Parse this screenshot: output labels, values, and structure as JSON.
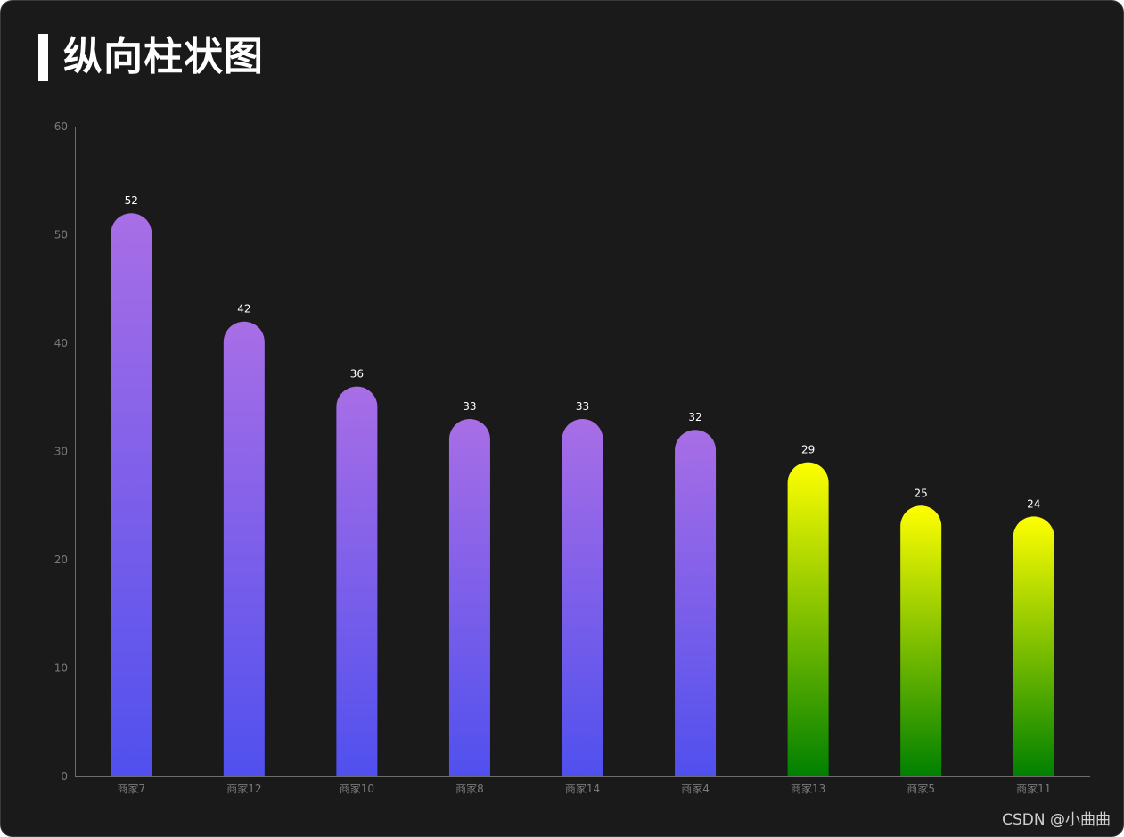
{
  "page": {
    "title": "纵向柱状图",
    "watermark": "CSDN @小曲曲"
  },
  "colors": {
    "background": "#1a1a1a",
    "axis": "#6e6e6e",
    "tick_text": "#7a7a7a",
    "label_text": "#ffffff",
    "purple_top": "#a86ee6",
    "purple_bottom": "#5050ee",
    "yellow_top": "#ffff00",
    "green_bottom": "#008000"
  },
  "chart_data": {
    "type": "bar",
    "categories": [
      "商家7",
      "商家12",
      "商家10",
      "商家8",
      "商家14",
      "商家4",
      "商家13",
      "商家5",
      "商家11"
    ],
    "values": [
      52,
      42,
      36,
      33,
      33,
      32,
      29,
      25,
      24
    ],
    "bar_colors": [
      "purple",
      "purple",
      "purple",
      "purple",
      "purple",
      "purple",
      "yellow-green",
      "yellow-green",
      "yellow-green"
    ],
    "ylim": [
      0,
      60
    ],
    "yticks": [
      0,
      10,
      20,
      30,
      40,
      50,
      60
    ],
    "grid": false,
    "data_labels": true,
    "title": "",
    "xlabel": "",
    "ylabel": ""
  }
}
